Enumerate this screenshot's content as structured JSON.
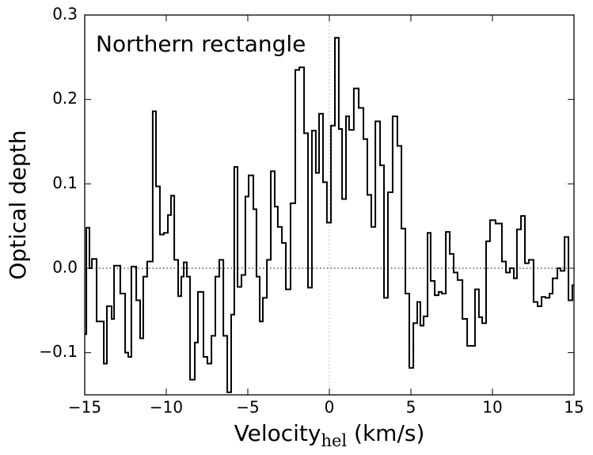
{
  "chart_data": {
    "type": "step",
    "annotation": "Northern rectangle",
    "y_label": "Optical depth",
    "x_label": "Velocity",
    "x_label_subscript": "hel",
    "x_label_unit": "(km/s)",
    "color": "#000000",
    "xlim": [
      -15,
      15
    ],
    "ylim": [
      -0.15,
      0.3
    ],
    "xticks": [
      {
        "value": -15,
        "label": "−15"
      },
      {
        "value": -10,
        "label": "−10"
      },
      {
        "value": -5,
        "label": "−5"
      },
      0,
      5,
      10,
      15
    ],
    "yticks": [
      {
        "value": -0.1,
        "label": "−0.1"
      },
      {
        "value": 0,
        "label": "0.0"
      },
      0.1,
      0.2,
      0.3
    ],
    "reference_lines": {
      "x": 0,
      "y": 0
    },
    "x": [
      -15.0,
      -14.9,
      -14.71,
      -14.56,
      -14.27,
      -13.83,
      -13.64,
      -13.35,
      -13.2,
      -12.82,
      -12.52,
      -12.33,
      -12.14,
      -11.84,
      -11.6,
      -11.41,
      -11.17,
      -10.83,
      -10.63,
      -10.39,
      -10.15,
      -9.9,
      -9.71,
      -9.51,
      -9.27,
      -9.08,
      -8.93,
      -8.74,
      -8.54,
      -8.25,
      -8.06,
      -7.72,
      -7.48,
      -7.23,
      -6.99,
      -6.75,
      -6.5,
      -6.26,
      -6.02,
      -5.83,
      -5.63,
      -5.39,
      -5.15,
      -4.95,
      -4.66,
      -4.47,
      -4.27,
      -4.08,
      -3.83,
      -3.59,
      -3.35,
      -3.16,
      -2.91,
      -2.67,
      -2.38,
      -2.09,
      -1.84,
      -1.55,
      -1.31,
      -1.07,
      -0.83,
      -0.63,
      -0.39,
      -0.15,
      0.1,
      0.34,
      0.58,
      0.78,
      1.02,
      1.21,
      1.5,
      1.8,
      2.09,
      2.33,
      2.57,
      2.82,
      3.11,
      3.35,
      3.59,
      3.88,
      4.17,
      4.42,
      4.66,
      4.9,
      5.15,
      5.39,
      5.58,
      5.78,
      6.02,
      6.21,
      6.46,
      6.7,
      6.89,
      7.14,
      7.38,
      7.62,
      7.86,
      8.16,
      8.45,
      8.93,
      9.17,
      9.37,
      9.61,
      9.85,
      10.19,
      10.58,
      10.83,
      11.07,
      11.31,
      11.5,
      11.75,
      11.99,
      12.23,
      12.52,
      12.77,
      13.01,
      13.25,
      13.5,
      13.69,
      13.98,
      14.17,
      14.42,
      14.66,
      14.9
    ],
    "values": [
      -0.078,
      0.048,
      0.0,
      0.011,
      -0.063,
      -0.113,
      -0.045,
      -0.06,
      0.003,
      -0.03,
      -0.1,
      -0.105,
      0.002,
      -0.038,
      -0.083,
      -0.01,
      0.008,
      0.186,
      0.097,
      0.04,
      0.042,
      0.063,
      0.086,
      0.01,
      -0.033,
      -0.01,
      0.007,
      -0.01,
      -0.132,
      -0.088,
      -0.028,
      -0.105,
      -0.113,
      -0.08,
      -0.01,
      0.01,
      -0.08,
      -0.147,
      -0.055,
      0.12,
      -0.022,
      -0.008,
      0.085,
      0.11,
      0.07,
      -0.01,
      -0.063,
      -0.035,
      0.01,
      0.115,
      0.073,
      0.049,
      0.03,
      -0.025,
      0.077,
      0.235,
      0.238,
      0.16,
      -0.023,
      0.163,
      0.113,
      0.183,
      0.102,
      0.054,
      0.169,
      0.273,
      0.165,
      0.082,
      0.18,
      0.164,
      0.213,
      0.19,
      0.153,
      0.087,
      0.049,
      0.174,
      0.122,
      -0.035,
      0.09,
      0.18,
      0.145,
      0.047,
      -0.03,
      -0.118,
      -0.065,
      -0.04,
      -0.068,
      -0.057,
      0.042,
      -0.015,
      -0.032,
      -0.028,
      -0.03,
      0.043,
      0.017,
      -0.005,
      -0.014,
      -0.06,
      -0.092,
      -0.025,
      -0.058,
      -0.065,
      0.032,
      0.057,
      0.053,
      0.008,
      -0.005,
      0.0,
      -0.012,
      0.046,
      0.062,
      0.006,
      0.01,
      -0.04,
      -0.045,
      -0.034,
      -0.035,
      -0.03,
      -0.012,
      0.0,
      -0.003,
      0.037,
      -0.038,
      -0.02
    ]
  }
}
